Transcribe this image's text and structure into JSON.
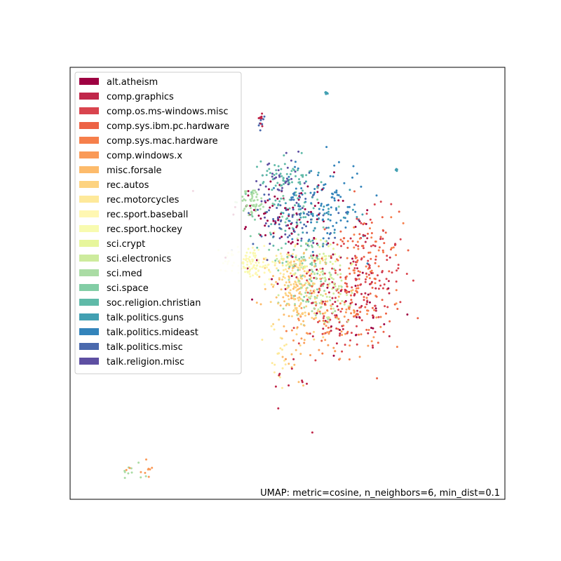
{
  "chart_data": {
    "type": "scatter",
    "title": "",
    "xlabel": "",
    "ylabel": "",
    "annotation": "UMAP: metric=cosine, n_neighbors=6, min_dist=0.1",
    "grid": false,
    "axes_ticks": false,
    "legend_position": "top-left",
    "xlim": [
      0,
      100
    ],
    "ylim": [
      0,
      100
    ],
    "series": [
      {
        "name": "alt.atheism",
        "color": "#9e0142",
        "clusters": [
          [
            49,
            66,
            6,
            4,
            60
          ],
          [
            54,
            60,
            10,
            10,
            50
          ],
          [
            66,
            42,
            5,
            5,
            20
          ]
        ]
      },
      {
        "name": "comp.graphics",
        "color": "#c0274a",
        "clusters": [
          [
            44,
            88,
            0.4,
            1.2,
            10
          ],
          [
            65,
            49,
            6,
            8,
            70
          ],
          [
            51,
            28,
            2,
            3,
            10
          ]
        ]
      },
      {
        "name": "comp.os.ms-windows.misc",
        "color": "#d9444e",
        "clusters": [
          [
            67,
            52,
            5,
            7,
            90
          ],
          [
            62,
            42,
            5,
            5,
            30
          ]
        ]
      },
      {
        "name": "comp.sys.ibm.pc.hardware",
        "color": "#ed6245",
        "clusters": [
          [
            66,
            51,
            5,
            8,
            90
          ]
        ]
      },
      {
        "name": "comp.sys.mac.hardware",
        "color": "#f67f4b",
        "clusters": [
          [
            68,
            50,
            4,
            7,
            70
          ],
          [
            58,
            42,
            4,
            3,
            20
          ]
        ]
      },
      {
        "name": "comp.windows.x",
        "color": "#fa9a58",
        "clusters": [
          [
            60,
            40,
            5,
            4,
            50
          ],
          [
            16,
            7,
            2,
            1.5,
            10
          ]
        ]
      },
      {
        "name": "misc.forsale",
        "color": "#fdbb6b",
        "clusters": [
          [
            53,
            49,
            4,
            4,
            70
          ],
          [
            52,
            34,
            1.5,
            4,
            10
          ]
        ]
      },
      {
        "name": "rec.autos",
        "color": "#fdd380",
        "clusters": [
          [
            52,
            49,
            3,
            4,
            90
          ],
          [
            55,
            43,
            3,
            3,
            30
          ]
        ]
      },
      {
        "name": "rec.motorcycles",
        "color": "#fee99a",
        "clusters": [
          [
            50,
            54,
            2,
            2,
            40
          ],
          [
            48,
            33,
            1.5,
            4,
            20
          ]
        ]
      },
      {
        "name": "rec.sport.baseball",
        "color": "#fff7b2",
        "clusters": [
          [
            42,
            55,
            3,
            2,
            60
          ]
        ]
      },
      {
        "name": "rec.sport.hockey",
        "color": "#f8fbb0",
        "clusters": [
          [
            41,
            55,
            3,
            2,
            50
          ]
        ]
      },
      {
        "name": "sci.crypt",
        "color": "#e7f69c",
        "clusters": [
          [
            58,
            55,
            3,
            3,
            40
          ]
        ]
      },
      {
        "name": "sci.electronics",
        "color": "#cdeb9d",
        "clusters": [
          [
            57,
            50,
            4,
            5,
            50
          ],
          [
            62,
            45,
            3,
            3,
            20
          ]
        ]
      },
      {
        "name": "sci.med",
        "color": "#aadca4",
        "clusters": [
          [
            42,
            69,
            1.5,
            1.5,
            50
          ],
          [
            56,
            48,
            4,
            4,
            40
          ],
          [
            15,
            7,
            1.5,
            1.5,
            10
          ]
        ]
      },
      {
        "name": "sci.space",
        "color": "#82cda5",
        "clusters": [
          [
            54,
            55,
            3,
            4,
            60
          ],
          [
            49,
            66,
            4,
            4,
            30
          ]
        ]
      },
      {
        "name": "soc.religion.christian",
        "color": "#5fbaa8",
        "clusters": [
          [
            50,
            75,
            3,
            2,
            50
          ],
          [
            50,
            68,
            4,
            4,
            30
          ]
        ]
      },
      {
        "name": "talk.politics.guns",
        "color": "#42a0b2",
        "clusters": [
          [
            56,
            66,
            5,
            4,
            40
          ],
          [
            75,
            76,
            0.2,
            0.2,
            4
          ],
          [
            59,
            94,
            0.4,
            0.3,
            5
          ]
        ]
      },
      {
        "name": "talk.politics.mideast",
        "color": "#3384bb",
        "clusters": [
          [
            58,
            69,
            5,
            5,
            100
          ]
        ]
      },
      {
        "name": "talk.politics.misc",
        "color": "#4a69ad",
        "clusters": [
          [
            52,
            65,
            5,
            4,
            60
          ],
          [
            44,
            87,
            0.4,
            1.2,
            8
          ]
        ]
      },
      {
        "name": "talk.religion.misc",
        "color": "#5e4fa2",
        "clusters": [
          [
            48,
            73,
            3,
            3,
            30
          ],
          [
            50,
            66,
            4,
            4,
            20
          ]
        ]
      }
    ]
  }
}
